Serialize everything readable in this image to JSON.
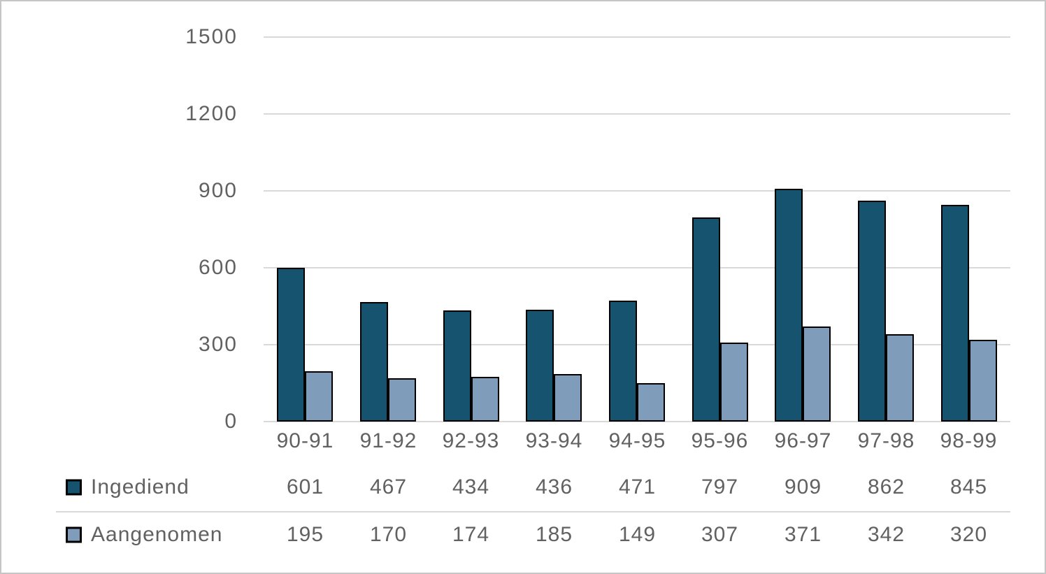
{
  "chart_data": {
    "type": "bar",
    "title": "",
    "xlabel": "",
    "ylabel": "",
    "categories": [
      "90-91",
      "91-92",
      "92-93",
      "93-94",
      "94-95",
      "95-96",
      "96-97",
      "97-98",
      "98-99"
    ],
    "series": [
      {
        "name": "Ingediend",
        "color": "#15536F",
        "values": [
          601,
          467,
          434,
          436,
          471,
          797,
          909,
          862,
          845
        ]
      },
      {
        "name": "Aangenomen",
        "color": "#7F9CBA",
        "values": [
          195,
          170,
          174,
          185,
          149,
          307,
          371,
          342,
          320
        ]
      }
    ],
    "ylim": [
      0,
      1500
    ],
    "yticks": [
      0,
      300,
      600,
      900,
      1200,
      1500
    ],
    "grid": true,
    "legend_position": "data-table-left",
    "bar_border_color": "#000000",
    "gridline_color": "#d9d9d9",
    "text_color": "#616161",
    "background_color": "#ffffff",
    "frame_border_color": "#c6c6c6"
  }
}
